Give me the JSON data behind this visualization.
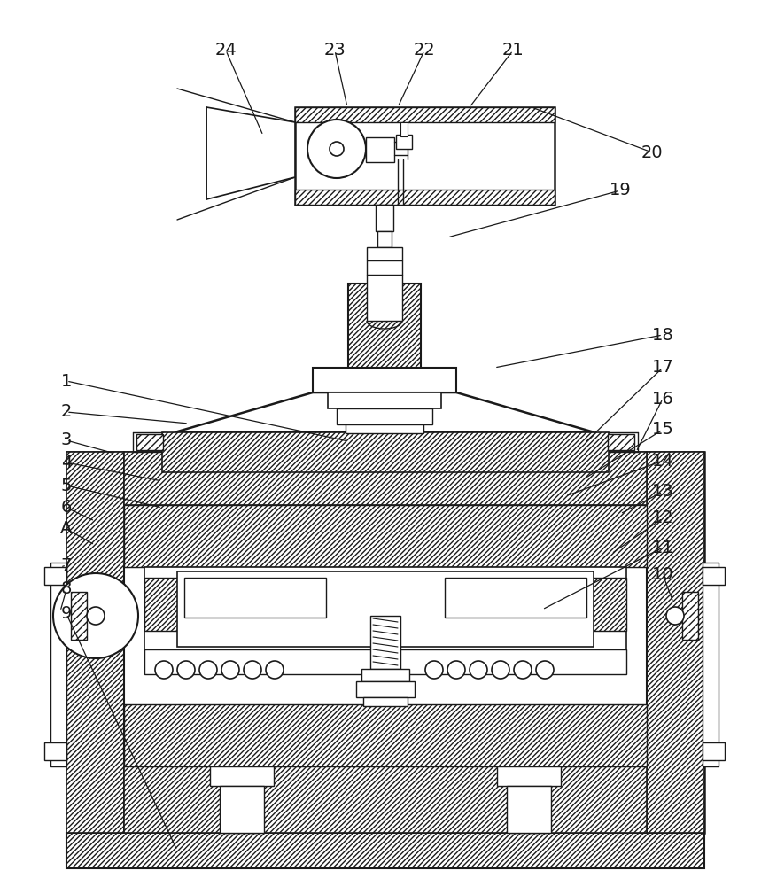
{
  "bg_color": "#ffffff",
  "lc": "#1a1a1a",
  "label_fontsize": 14,
  "leaders": [
    [
      "24",
      255,
      57,
      297,
      153
    ],
    [
      "23",
      378,
      57,
      392,
      121
    ],
    [
      "22",
      479,
      57,
      449,
      121
    ],
    [
      "21",
      579,
      57,
      530,
      121
    ],
    [
      "20",
      736,
      172,
      600,
      121
    ],
    [
      "19",
      700,
      215,
      505,
      268
    ],
    [
      "18",
      748,
      378,
      558,
      415
    ],
    [
      "17",
      748,
      415,
      660,
      500
    ],
    [
      "16",
      748,
      450,
      718,
      510
    ],
    [
      "15",
      748,
      485,
      660,
      540
    ],
    [
      "14",
      748,
      520,
      638,
      560
    ],
    [
      "13",
      748,
      555,
      700,
      580
    ],
    [
      "12",
      748,
      585,
      690,
      625
    ],
    [
      "11",
      748,
      618,
      612,
      688
    ],
    [
      "10",
      748,
      648,
      760,
      680
    ],
    [
      "1",
      75,
      430,
      393,
      498
    ],
    [
      "2",
      75,
      465,
      213,
      478
    ],
    [
      "3",
      75,
      497,
      130,
      512
    ],
    [
      "4",
      75,
      522,
      183,
      543
    ],
    [
      "5",
      75,
      548,
      183,
      573
    ],
    [
      "6",
      75,
      573,
      107,
      588
    ],
    [
      "A",
      75,
      597,
      107,
      615
    ],
    [
      "7",
      75,
      638,
      68,
      640
    ],
    [
      "8",
      75,
      665,
      68,
      690
    ],
    [
      "9",
      75,
      693,
      200,
      960
    ]
  ]
}
